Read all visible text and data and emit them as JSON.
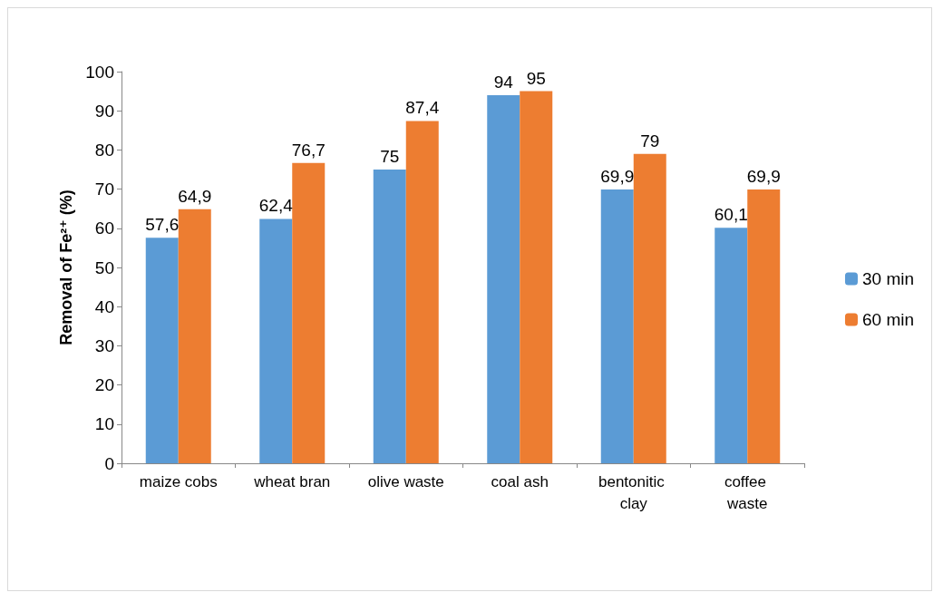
{
  "chart_data": {
    "type": "bar",
    "ylabel": "Removal of Fe²⁺ (%)",
    "categories": [
      "maize cobs",
      "wheat bran",
      "olive waste",
      "coal ash",
      "bentonitic clay",
      "coffee waste"
    ],
    "series": [
      {
        "name": "30 min",
        "color": "#5b9bd5",
        "values": [
          57.6,
          62.4,
          75,
          94,
          69.9,
          60.1
        ],
        "value_labels": [
          "57,6",
          "62,4",
          "75",
          "94",
          "69,9",
          "60,1"
        ]
      },
      {
        "name": "60 min",
        "color": "#ed7d31",
        "values": [
          64.9,
          76.7,
          87.4,
          95,
          79,
          69.9
        ],
        "value_labels": [
          "64,9",
          "76,7",
          "87,4",
          "95",
          "79",
          "69,9"
        ]
      }
    ],
    "ylim": [
      0,
      100
    ],
    "yticks": [
      0,
      10,
      20,
      30,
      40,
      50,
      60,
      70,
      80,
      90,
      100
    ],
    "grid": false,
    "legend": "right"
  }
}
